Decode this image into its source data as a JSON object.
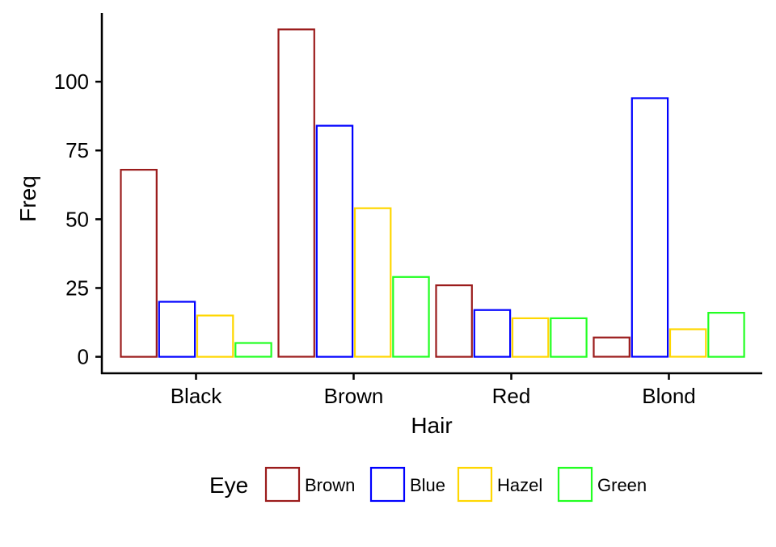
{
  "chart_data": {
    "type": "bar",
    "xlabel": "Hair",
    "ylabel": "Freq",
    "categories": [
      "Black",
      "Brown",
      "Red",
      "Blond"
    ],
    "series": [
      {
        "name": "Brown",
        "color": "#9B1C1C",
        "values": [
          68,
          119,
          26,
          7
        ]
      },
      {
        "name": "Blue",
        "color": "#0000FF",
        "values": [
          20,
          84,
          17,
          94
        ]
      },
      {
        "name": "Hazel",
        "color": "#FFD700",
        "values": [
          15,
          54,
          14,
          10
        ]
      },
      {
        "name": "Green",
        "color": "#22FF22",
        "values": [
          5,
          29,
          14,
          16
        ]
      }
    ],
    "yticks": [
      0,
      25,
      50,
      75,
      100
    ],
    "ylim": [
      -6,
      125
    ],
    "grid": false,
    "legend_title": "Eye",
    "legend_position": "bottom"
  }
}
